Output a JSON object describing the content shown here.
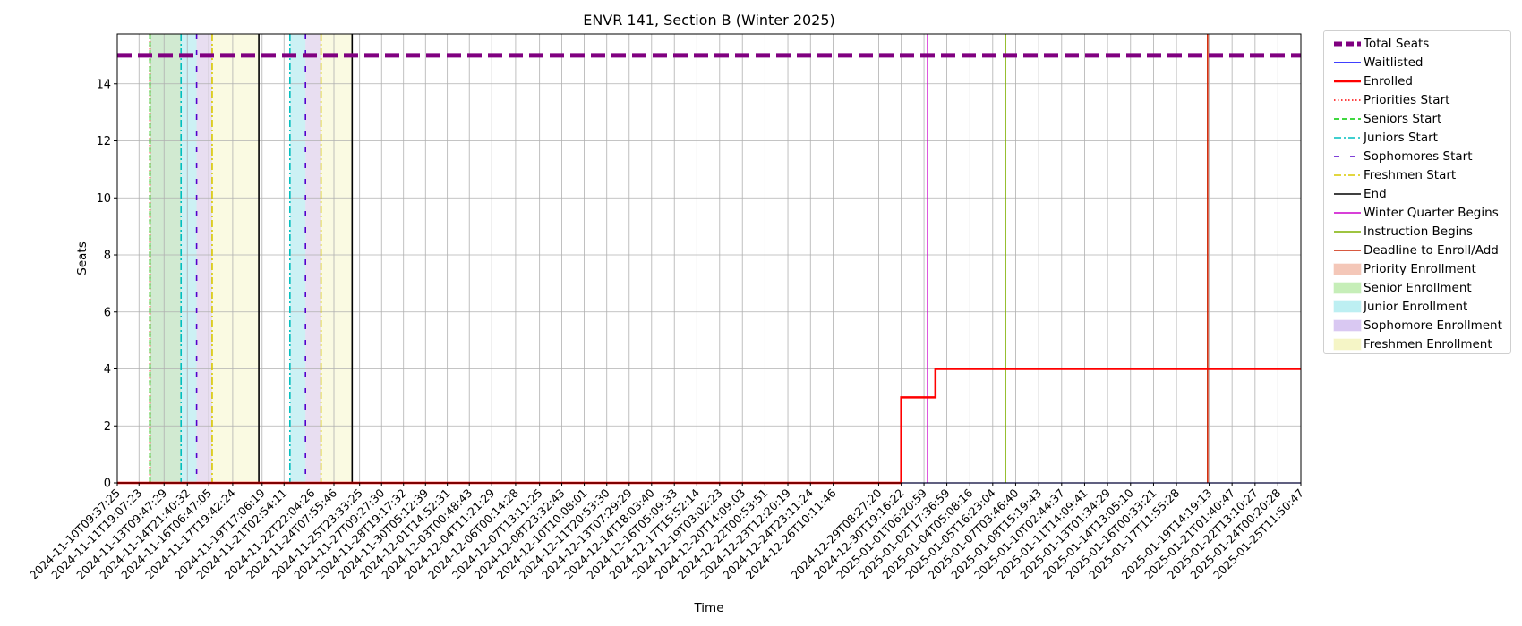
{
  "chart_data": {
    "type": "line",
    "title": "ENVR 141, Section B (Winter 2025)",
    "xlabel": "Time",
    "ylabel": "Seats",
    "ylim": [
      0,
      15.75
    ],
    "yticks": [
      0,
      2,
      4,
      6,
      8,
      10,
      12,
      14
    ],
    "xlim": [
      "2024-11-10T09:37:25",
      "2025-01-25T11:50:47"
    ],
    "x_ticks": [
      "2024-11-10T09:37:25",
      "2024-11-11T19:07:23",
      "2024-11-13T09:47:29",
      "2024-11-14T21:40:32",
      "2024-11-16T06:47:05",
      "2024-11-17T19:42:24",
      "2024-11-19T17:06:19",
      "2024-11-21T02:54:11",
      "2024-11-22T22:04:26",
      "2024-11-24T07:55:46",
      "2024-11-25T23:33:25",
      "2024-11-27T09:27:30",
      "2024-11-28T19:17:32",
      "2024-11-30T05:12:39",
      "2024-12-01T14:52:31",
      "2024-12-03T00:48:43",
      "2024-12-04T11:21:29",
      "2024-12-06T00:14:28",
      "2024-12-07T13:11:25",
      "2024-12-08T23:32:43",
      "2024-12-10T10:08:01",
      "2024-12-11T20:53:30",
      "2024-12-13T07:29:29",
      "2024-12-14T18:03:40",
      "2024-12-16T05:09:33",
      "2024-12-17T15:52:14",
      "2024-12-19T03:02:23",
      "2024-12-20T14:09:03",
      "2024-12-22T00:53:51",
      "2024-12-23T12:20:19",
      "2024-12-24T23:11:24",
      "2024-12-26T10:11:46",
      "2024-12-29T08:27:20",
      "2024-12-30T19:16:22",
      "2025-01-01T06:20:59",
      "2025-01-02T17:36:59",
      "2025-01-04T05:08:16",
      "2025-01-05T16:23:04",
      "2025-01-07T03:46:40",
      "2025-01-08T15:19:43",
      "2025-01-10T02:44:37",
      "2025-01-11T14:09:41",
      "2025-01-13T01:34:29",
      "2025-01-14T13:05:10",
      "2025-01-16T00:33:21",
      "2025-01-17T11:55:28",
      "2025-01-19T14:19:13",
      "2025-01-21T01:40:47",
      "2025-01-22T13:10:27",
      "2025-01-24T00:20:28",
      "2025-01-25T11:50:47"
    ],
    "grid": true,
    "legend_position": "outside-right",
    "series": [
      {
        "name": "Total Seats",
        "color": "#800080",
        "style": "dashed-thick",
        "points": [
          {
            "x": "2024-11-10T09:37:25",
            "y": 15
          },
          {
            "x": "2025-01-25T11:50:47",
            "y": 15
          }
        ]
      },
      {
        "name": "Waitlisted",
        "color": "#0000ff",
        "style": "solid",
        "points": [
          {
            "x": "2024-11-10T09:37:25",
            "y": 0
          },
          {
            "x": "2025-01-25T11:50:47",
            "y": 0
          }
        ]
      },
      {
        "name": "Enrolled",
        "color": "#ff0000",
        "style": "solid-thick",
        "points": [
          {
            "x": "2024-11-10T09:37:25",
            "y": 0
          },
          {
            "x": "2024-12-30T19:16:22",
            "y": 0
          },
          {
            "x": "2024-12-30T19:16:22",
            "y": 3
          },
          {
            "x": "2025-01-02T00:00:00",
            "y": 3
          },
          {
            "x": "2025-01-02T00:00:00",
            "y": 4
          },
          {
            "x": "2025-01-25T11:50:47",
            "y": 4
          }
        ]
      }
    ],
    "events": [
      {
        "name": "Priorities Start",
        "color": "#ff0000",
        "style": "dotted",
        "x": "2024-11-12T12:00:00"
      },
      {
        "name": "Seniors Start",
        "color": "#00cc00",
        "style": "dashed",
        "x": "2024-11-12T12:00:00"
      },
      {
        "name": "Juniors Start",
        "color": "#00bfbf",
        "style": "dashdot",
        "x": "2024-11-14T12:00:00"
      },
      {
        "name": "Sophomores Start",
        "color": "#5500cc",
        "style": "loosedash",
        "x": "2024-11-15T12:00:00"
      },
      {
        "name": "Freshmen Start",
        "color": "#d8c800",
        "style": "dashdot",
        "x": "2024-11-16T12:00:00"
      },
      {
        "name": "End",
        "color": "#000000",
        "style": "solid",
        "x": "2024-11-19T12:00:00"
      },
      {
        "name": "Juniors Start",
        "color": "#00bfbf",
        "style": "dashdot",
        "x": "2024-11-21T12:00:00"
      },
      {
        "name": "Sophomores Start",
        "color": "#5500cc",
        "style": "loosedash",
        "x": "2024-11-22T12:00:00"
      },
      {
        "name": "Freshmen Start",
        "color": "#d8c800",
        "style": "dashdot",
        "x": "2024-11-23T12:00:00"
      },
      {
        "name": "End",
        "color": "#000000",
        "style": "solid",
        "x": "2024-11-25T12:00:00"
      },
      {
        "name": "Winter Quarter Begins",
        "color": "#cc00cc",
        "style": "solid",
        "x": "2025-01-01T12:00:00"
      },
      {
        "name": "Instruction Begins",
        "color": "#7fb000",
        "style": "solid",
        "x": "2025-01-06T12:00:00"
      },
      {
        "name": "Deadline to Enroll/Add",
        "color": "#cc2200",
        "style": "solid",
        "x": "2025-01-19T12:00:00"
      }
    ],
    "shaded_periods": [
      {
        "name": "Senior Enrollment",
        "color": "#2ca02c",
        "start": "2024-11-12T12:00:00",
        "end": "2024-11-14T12:00:00"
      },
      {
        "name": "Junior Enrollment",
        "color": "#17becf",
        "start": "2024-11-14T12:00:00",
        "end": "2024-11-15T12:00:00"
      },
      {
        "name": "Sophomore Enrollment",
        "color": "#9467bd",
        "start": "2024-11-15T12:00:00",
        "end": "2024-11-16T12:00:00"
      },
      {
        "name": "Freshmen Enrollment",
        "color": "#e8e87a",
        "start": "2024-11-16T12:00:00",
        "end": "2024-11-19T12:00:00"
      },
      {
        "name": "Junior Enrollment",
        "color": "#17becf",
        "start": "2024-11-21T12:00:00",
        "end": "2024-11-22T12:00:00"
      },
      {
        "name": "Sophomore Enrollment",
        "color": "#9467bd",
        "start": "2024-11-22T12:00:00",
        "end": "2024-11-23T12:00:00"
      },
      {
        "name": "Freshmen Enrollment",
        "color": "#e8e87a",
        "start": "2024-11-23T12:00:00",
        "end": "2024-11-25T12:00:00"
      }
    ],
    "legend": [
      {
        "label": "Total Seats",
        "kind": "line",
        "color": "#800080",
        "style": "dashed-thick"
      },
      {
        "label": "Waitlisted",
        "kind": "line",
        "color": "#0000ff",
        "style": "solid"
      },
      {
        "label": "Enrolled",
        "kind": "line",
        "color": "#ff0000",
        "style": "solid-thick"
      },
      {
        "label": "Priorities Start",
        "kind": "line",
        "color": "#ff0000",
        "style": "dotted"
      },
      {
        "label": "Seniors Start",
        "kind": "line",
        "color": "#00cc00",
        "style": "dashed"
      },
      {
        "label": "Juniors Start",
        "kind": "line",
        "color": "#00bfbf",
        "style": "dashdot"
      },
      {
        "label": "Sophomores Start",
        "kind": "line",
        "color": "#5500cc",
        "style": "loosedash"
      },
      {
        "label": "Freshmen Start",
        "kind": "line",
        "color": "#d8c800",
        "style": "dashdot"
      },
      {
        "label": "End",
        "kind": "line",
        "color": "#000000",
        "style": "solid"
      },
      {
        "label": "Winter Quarter Begins",
        "kind": "line",
        "color": "#cc00cc",
        "style": "solid"
      },
      {
        "label": "Instruction Begins",
        "kind": "line",
        "color": "#7fb000",
        "style": "solid"
      },
      {
        "label": "Deadline to Enroll/Add",
        "kind": "line",
        "color": "#cc2200",
        "style": "solid"
      },
      {
        "label": "Priority Enrollment",
        "kind": "patch",
        "color": "#f4c7b8"
      },
      {
        "label": "Senior Enrollment",
        "kind": "patch",
        "color": "#c6eeb8"
      },
      {
        "label": "Junior Enrollment",
        "kind": "patch",
        "color": "#bdeff2"
      },
      {
        "label": "Sophomore Enrollment",
        "kind": "patch",
        "color": "#d9c8f2"
      },
      {
        "label": "Freshmen Enrollment",
        "kind": "patch",
        "color": "#f5f5c6"
      }
    ]
  }
}
